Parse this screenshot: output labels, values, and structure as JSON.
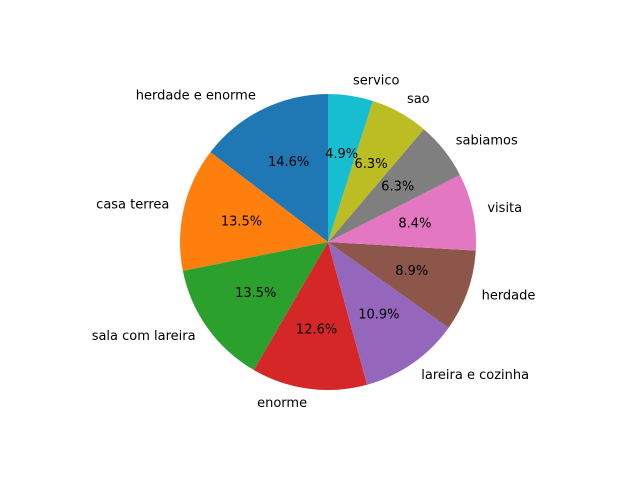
{
  "chart_data": {
    "type": "pie",
    "title": "",
    "start_angle_deg": 90,
    "direction": "counterclockwise",
    "slices": [
      {
        "label": "herdade e enorme",
        "value": 14.6,
        "pct_label": "14.6%",
        "color": "#1f77b4"
      },
      {
        "label": "casa terrea",
        "value": 13.5,
        "pct_label": "13.5%",
        "color": "#ff7f0e"
      },
      {
        "label": "sala com lareira",
        "value": 13.5,
        "pct_label": "13.5%",
        "color": "#2ca02c"
      },
      {
        "label": "enorme",
        "value": 12.6,
        "pct_label": "12.6%",
        "color": "#d62728"
      },
      {
        "label": "lareira e cozinha",
        "value": 10.9,
        "pct_label": "10.9%",
        "color": "#9467bd"
      },
      {
        "label": "herdade",
        "value": 8.9,
        "pct_label": "8.9%",
        "color": "#8c564b"
      },
      {
        "label": "visita",
        "value": 8.4,
        "pct_label": "8.4%",
        "color": "#e377c2"
      },
      {
        "label": "sabiamos",
        "value": 6.3,
        "pct_label": "6.3%",
        "color": "#7f7f7f"
      },
      {
        "label": "sao",
        "value": 6.3,
        "pct_label": "6.3%",
        "color": "#bcbd22"
      },
      {
        "label": "servico",
        "value": 4.9,
        "pct_label": "4.9%",
        "color": "#17becf"
      }
    ]
  }
}
